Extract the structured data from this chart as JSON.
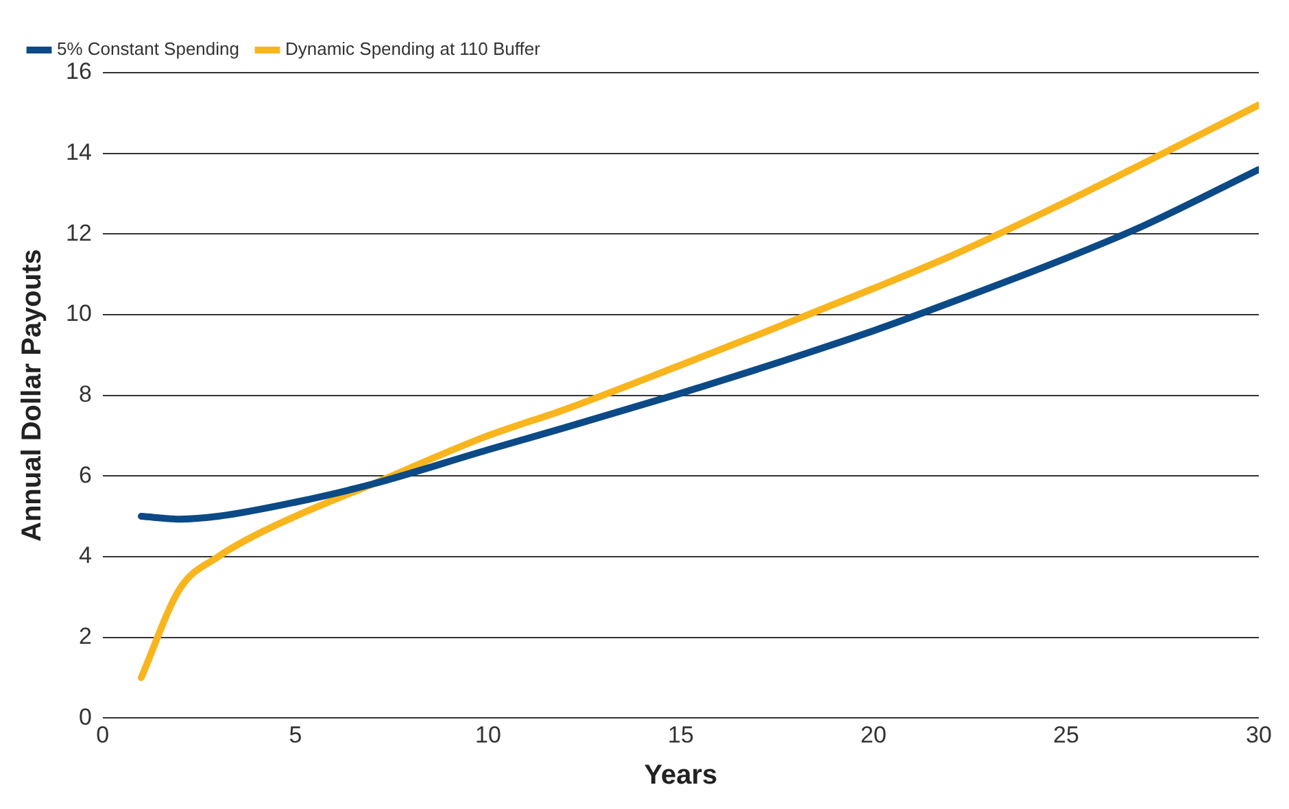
{
  "chart_data": {
    "type": "line",
    "xlabel": "Years",
    "ylabel": "Annual Dollar Payouts",
    "xlim": [
      0,
      30
    ],
    "xticks": [
      0,
      5,
      10,
      15,
      20,
      25,
      30
    ],
    "ylim": [
      0,
      16
    ],
    "yticks": [
      0,
      2,
      4,
      6,
      8,
      10,
      12,
      14,
      16
    ],
    "grid": "y",
    "legend": "top left",
    "marker": "none",
    "line_style": "solid",
    "series": [
      {
        "name": "5% Constant Spending",
        "color": "#0b4a86",
        "x": [
          1,
          2,
          3,
          5,
          7,
          10,
          12,
          15,
          17,
          20,
          22,
          25,
          27,
          30
        ],
        "values": [
          5.0,
          4.93,
          5.0,
          5.35,
          5.8,
          6.65,
          7.2,
          8.05,
          8.65,
          9.6,
          10.3,
          11.4,
          12.2,
          13.6
        ]
      },
      {
        "name": "Dynamic Spending at 110 Buffer",
        "color": "#f9b51d",
        "x": [
          1,
          2,
          3,
          4,
          5,
          7,
          10,
          12,
          15,
          17,
          20,
          22,
          25,
          27,
          30
        ],
        "values": [
          1.0,
          3.2,
          4.0,
          4.55,
          5.0,
          5.8,
          7.0,
          7.65,
          8.75,
          9.5,
          10.65,
          11.45,
          12.8,
          13.75,
          15.2
        ]
      }
    ]
  }
}
